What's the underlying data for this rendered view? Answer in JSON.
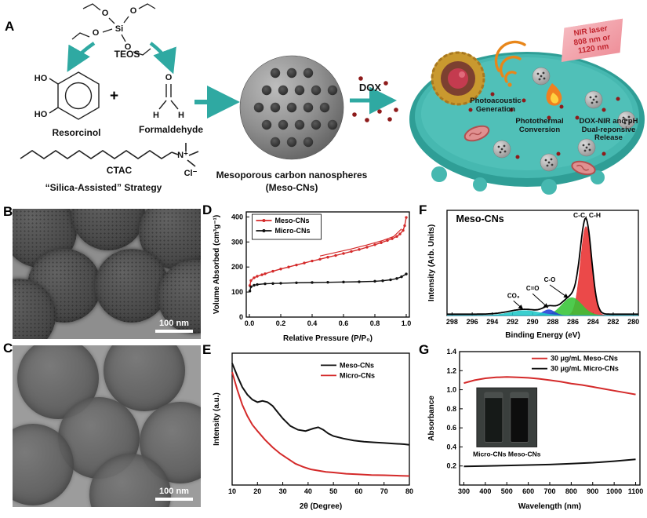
{
  "panelA": {
    "label": "A",
    "si": "Si",
    "o": "O",
    "h": "H",
    "ho": "HO",
    "plus": "+",
    "n_plus": "N⁺",
    "cl_minus": "Cl⁻",
    "teos_label": "TEOS",
    "resorcinol_label": "Resorcinol",
    "formaldehyde_label": "Formaldehyde",
    "ctac_label": "CTAC",
    "strategy_label": "“Silica-Assisted” Strategy",
    "dox_label": "DOX",
    "sphere_caption_line1": "Mesoporous carbon nanospheres",
    "sphere_caption_line2": "(Meso-CNs)",
    "nir_laser": "NIR laser\n808 nm or\n1120 nm",
    "photoacoustic": "Photoacoustic\nGeneration",
    "photothermal": "Photothermal\nConversion",
    "release": "DOX-NIR and pH\nDual-reponsive\nRelease"
  },
  "panelB": {
    "label": "B",
    "scalebar": "100 nm"
  },
  "panelC": {
    "label": "C",
    "scalebar": "100 nm"
  },
  "panelD": {
    "label": "D"
  },
  "panelE": {
    "label": "E"
  },
  "panelF": {
    "label": "F"
  },
  "panelG": {
    "label": "G"
  },
  "colors": {
    "teal_arrow": "#2fa9a2",
    "meso_red": "#d42a2a",
    "micro_black": "#111111",
    "dox_red": "#8e1b1b",
    "cell_teal": "#46b8b0"
  },
  "chart_data": [
    {
      "id": "chartD",
      "type": "line",
      "xlabel": "Relative Pressure (P/P₀)",
      "ylabel": "Volume Absorbed (cm³g⁻¹)",
      "xlim": [
        -0.02,
        1.02
      ],
      "ylim": [
        0,
        420
      ],
      "xtick_vals": [
        0.0,
        0.2,
        0.4,
        0.6,
        0.8,
        1.0
      ],
      "xtick_labels": [
        "0.0",
        "0.2",
        "0.4",
        "0.6",
        "0.8",
        "1.0"
      ],
      "ytick_vals": [
        0,
        100,
        200,
        300,
        400
      ],
      "ytick_labels": [
        "0",
        "100",
        "200",
        "300",
        "400"
      ],
      "m": {
        "l": 46,
        "r": 10,
        "t": 8,
        "b": 34
      },
      "legend": {
        "fx": 0.06,
        "fy": 0.03,
        "box": true,
        "w": 88
      },
      "series": [
        {
          "name": "Meso-CNs",
          "color": "#d42a2a",
          "marker": "circle",
          "width": 1.4,
          "x": [
            0.003,
            0.01,
            0.03,
            0.05,
            0.08,
            0.1,
            0.15,
            0.2,
            0.25,
            0.3,
            0.35,
            0.4,
            0.45,
            0.5,
            0.55,
            0.6,
            0.65,
            0.7,
            0.75,
            0.8,
            0.84,
            0.88,
            0.91,
            0.94,
            0.96,
            0.98,
            0.99,
            1.0
          ],
          "y": [
            126,
            146,
            157,
            163,
            169,
            173,
            183,
            192,
            200,
            208,
            216,
            224,
            231,
            239,
            246,
            254,
            262,
            270,
            279,
            289,
            297,
            306,
            313,
            322,
            332,
            346,
            365,
            398
          ]
        },
        {
          "name": "",
          "color": "#d42a2a",
          "width": 1.2,
          "x": [
            0.45,
            0.55,
            0.65,
            0.75,
            0.85,
            0.92,
            0.97
          ],
          "y": [
            244,
            258,
            272,
            288,
            306,
            322,
            352
          ]
        },
        {
          "name": "Micro-CNs",
          "color": "#111111",
          "marker": "circle",
          "width": 1.4,
          "x": [
            0.003,
            0.01,
            0.03,
            0.05,
            0.1,
            0.15,
            0.2,
            0.3,
            0.4,
            0.5,
            0.6,
            0.7,
            0.8,
            0.85,
            0.9,
            0.94,
            0.97,
            1.0
          ],
          "y": [
            104,
            121,
            127,
            130,
            133,
            134,
            135,
            137,
            138,
            139,
            140,
            141,
            143,
            145,
            149,
            154,
            161,
            172
          ]
        }
      ]
    },
    {
      "id": "chartE",
      "type": "line",
      "xlabel": "2θ (Degree)",
      "ylabel": "Intensity (a.u.)",
      "xlim": [
        10,
        80
      ],
      "ylim": [
        0,
        1.05
      ],
      "xtick_vals": [
        10,
        20,
        30,
        40,
        50,
        60,
        70,
        80
      ],
      "xtick_labels": [
        "10",
        "20",
        "30",
        "40",
        "50",
        "60",
        "70",
        "80"
      ],
      "m": {
        "l": 28,
        "r": 10,
        "t": 8,
        "b": 34
      },
      "legend": {
        "fx": 0.5,
        "fy": 0.05,
        "box": false
      },
      "series": [
        {
          "name": "Meso-CNs",
          "color": "#111111",
          "width": 2,
          "x": [
            10,
            12,
            14,
            16,
            18,
            20,
            22,
            24,
            26,
            28,
            30,
            33,
            36,
            39,
            42,
            44,
            46,
            48,
            50,
            54,
            58,
            62,
            66,
            70,
            74,
            78,
            80
          ],
          "y": [
            0.97,
            0.87,
            0.78,
            0.72,
            0.68,
            0.66,
            0.67,
            0.66,
            0.63,
            0.58,
            0.53,
            0.47,
            0.44,
            0.43,
            0.45,
            0.46,
            0.44,
            0.41,
            0.39,
            0.37,
            0.355,
            0.345,
            0.34,
            0.335,
            0.33,
            0.325,
            0.32
          ]
        },
        {
          "name": "Micro-CNs",
          "color": "#d42a2a",
          "width": 2,
          "x": [
            10,
            12,
            14,
            16,
            18,
            20,
            23,
            26,
            29,
            32,
            35,
            38,
            41,
            44,
            47,
            50,
            55,
            60,
            65,
            70,
            75,
            80
          ],
          "y": [
            0.9,
            0.76,
            0.64,
            0.55,
            0.48,
            0.43,
            0.36,
            0.3,
            0.25,
            0.21,
            0.17,
            0.145,
            0.125,
            0.115,
            0.105,
            0.1,
            0.09,
            0.085,
            0.08,
            0.078,
            0.075,
            0.072
          ]
        }
      ]
    },
    {
      "id": "chartF",
      "type": "area",
      "xlabel": "Binding Energy (eV)",
      "ylabel": "Intensity (Arb. Units)",
      "xlim": [
        298.5,
        279.5
      ],
      "ylim": [
        0,
        1.18
      ],
      "xtick_vals": [
        298,
        296,
        294,
        292,
        290,
        288,
        286,
        284,
        282,
        280
      ],
      "xtick_labels": [
        "298",
        "296",
        "294",
        "292",
        "290",
        "288",
        "286",
        "284",
        "282",
        "280"
      ],
      "m": {
        "l": 28,
        "r": 8,
        "t": 6,
        "b": 32
      },
      "envelope_color": "#000000",
      "peaks": [
        {
          "name": "C-C, C-H",
          "color": "#e83030",
          "center": 284.7,
          "sigma": 0.55,
          "amp": 1.0
        },
        {
          "name": "C-O",
          "color": "#35c435",
          "center": 286.1,
          "sigma": 1.0,
          "amp": 0.2
        },
        {
          "name": "C=O",
          "color": "#2040d8",
          "center": 288.4,
          "sigma": 0.6,
          "amp": 0.065
        },
        {
          "name": "CO₃",
          "color": "#20c8c8",
          "center": 290.8,
          "sigma": 1.5,
          "amp": 0.055
        }
      ],
      "annotations": [
        {
          "text": "Meso-CNs",
          "x": 297.6,
          "y": 1.05,
          "fs": 12.5,
          "anchor": "start"
        },
        {
          "text": "C-C, C-H",
          "x": 284.6,
          "y": 1.1,
          "fs": 8.5
        },
        {
          "text": "C-O",
          "x": 288.3,
          "y": 0.38,
          "fs": 8,
          "ax": 286.5,
          "ay": 0.2
        },
        {
          "text": "C=O",
          "x": 290.0,
          "y": 0.28,
          "fs": 8,
          "ax": 288.5,
          "ay": 0.09
        },
        {
          "text": "CO₃",
          "x": 291.9,
          "y": 0.2,
          "fs": 8,
          "ax": 291.0,
          "ay": 0.075
        }
      ]
    },
    {
      "id": "chartG",
      "type": "line",
      "xlabel": "Wavelength (nm)",
      "ylabel": "Absorbance",
      "xlim": [
        280,
        1120
      ],
      "ylim": [
        0,
        1.4
      ],
      "xtick_vals": [
        300,
        400,
        500,
        600,
        700,
        800,
        900,
        1000,
        1100
      ],
      "xtick_labels": [
        "300",
        "400",
        "500",
        "600",
        "700",
        "800",
        "900",
        "1000",
        "1100"
      ],
      "ytick_vals": [
        0.2,
        0.4,
        0.6,
        0.8,
        1.0,
        1.2,
        1.4
      ],
      "ytick_labels": [
        "0.2",
        "0.4",
        "0.6",
        "0.8",
        "1.0",
        "1.2",
        "1.4"
      ],
      "m": {
        "l": 44,
        "r": 6,
        "t": 6,
        "b": 34
      },
      "legend": {
        "fx": 0.4,
        "fy": 0.01,
        "box": false
      },
      "series": [
        {
          "name": "30 μg/mL Meso-CNs",
          "color": "#d42a2a",
          "width": 2,
          "x": [
            300,
            350,
            400,
            450,
            500,
            550,
            600,
            650,
            700,
            750,
            800,
            850,
            900,
            950,
            1000,
            1050,
            1100
          ],
          "y": [
            1.07,
            1.1,
            1.12,
            1.13,
            1.135,
            1.13,
            1.125,
            1.115,
            1.1,
            1.085,
            1.065,
            1.05,
            1.03,
            1.01,
            0.99,
            0.97,
            0.95
          ]
        },
        {
          "name": "30 μg/mL Micro-CNs",
          "color": "#111111",
          "width": 2,
          "x": [
            300,
            400,
            500,
            600,
            700,
            800,
            900,
            1000,
            1100
          ],
          "y": [
            0.195,
            0.2,
            0.205,
            0.21,
            0.215,
            0.225,
            0.235,
            0.25,
            0.27
          ]
        }
      ],
      "inset": {
        "x0": 360,
        "y0": 1.02,
        "x1": 640,
        "y1": 0.4
      },
      "annotations": [
        {
          "text": "Micro-CNs Meso-CNs",
          "x": 500,
          "y": 0.3,
          "fs": 8.5
        }
      ]
    }
  ]
}
